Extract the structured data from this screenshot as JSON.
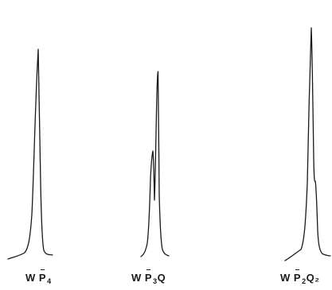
{
  "spectra": [
    {
      "id": "spectrum-1",
      "label": {
        "prefix": "W",
        "letter": "P",
        "subscript": "4",
        "suffix": ""
      }
    },
    {
      "id": "spectrum-2",
      "label": {
        "prefix": "W",
        "letter": "P",
        "subscript": "3",
        "suffix": "Q"
      }
    },
    {
      "id": "spectrum-3",
      "label": {
        "prefix": "W",
        "letter": "P",
        "subscript": "2",
        "suffix": "Q₂"
      }
    }
  ]
}
